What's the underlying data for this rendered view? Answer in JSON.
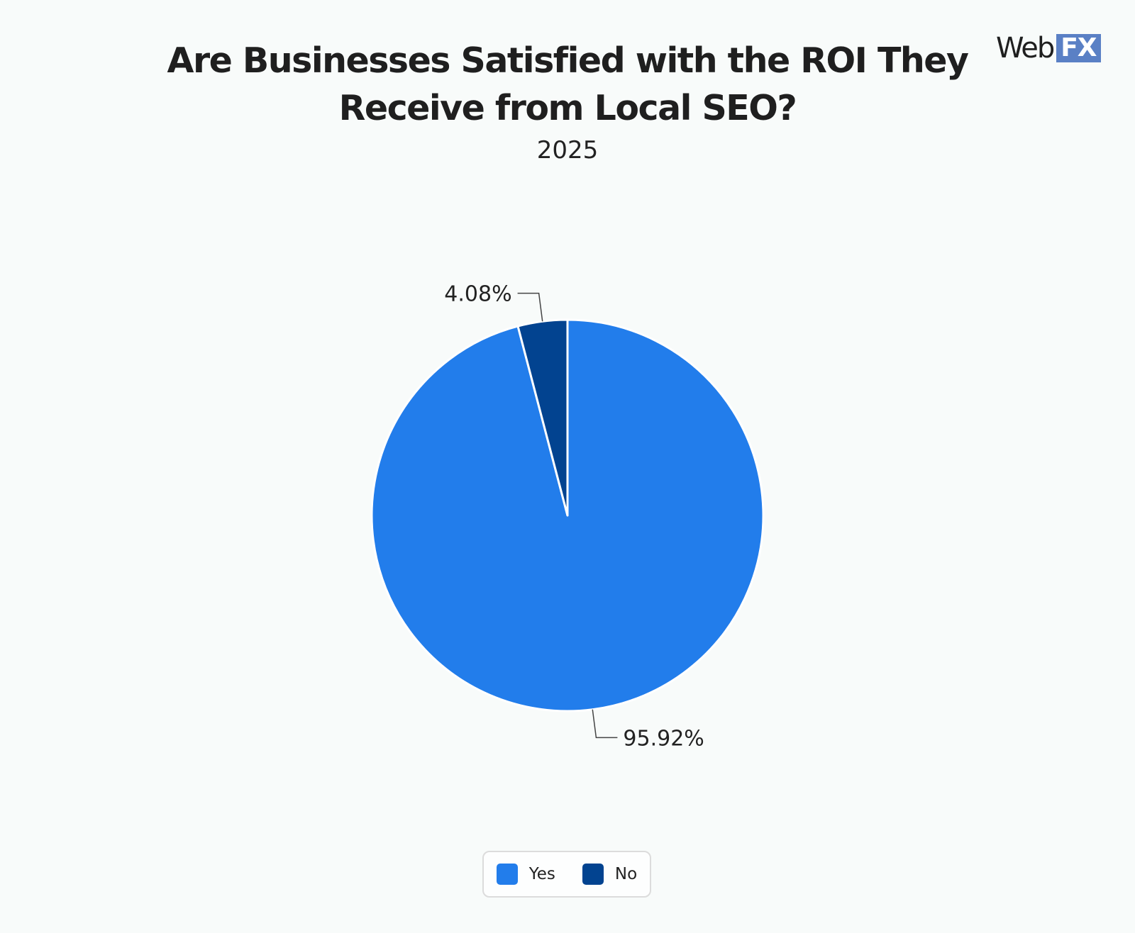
{
  "header": {
    "title": "Are Businesses Satisfied with the ROI They Receive from Local SEO?",
    "subtitle": "2025"
  },
  "logo": {
    "text_web": "Web",
    "text_fx": "FX",
    "accent_color": "#5a80c5"
  },
  "chart_data": {
    "type": "pie",
    "title": "Are Businesses Satisfied with the ROI They Receive from Local SEO?",
    "subtitle": "2025",
    "slices": [
      {
        "label": "Yes",
        "value": 95.92,
        "display": "95.92%",
        "color": "#227deb"
      },
      {
        "label": "No",
        "value": 4.08,
        "display": "4.08%",
        "color": "#024390"
      }
    ],
    "legend_position": "bottom"
  }
}
